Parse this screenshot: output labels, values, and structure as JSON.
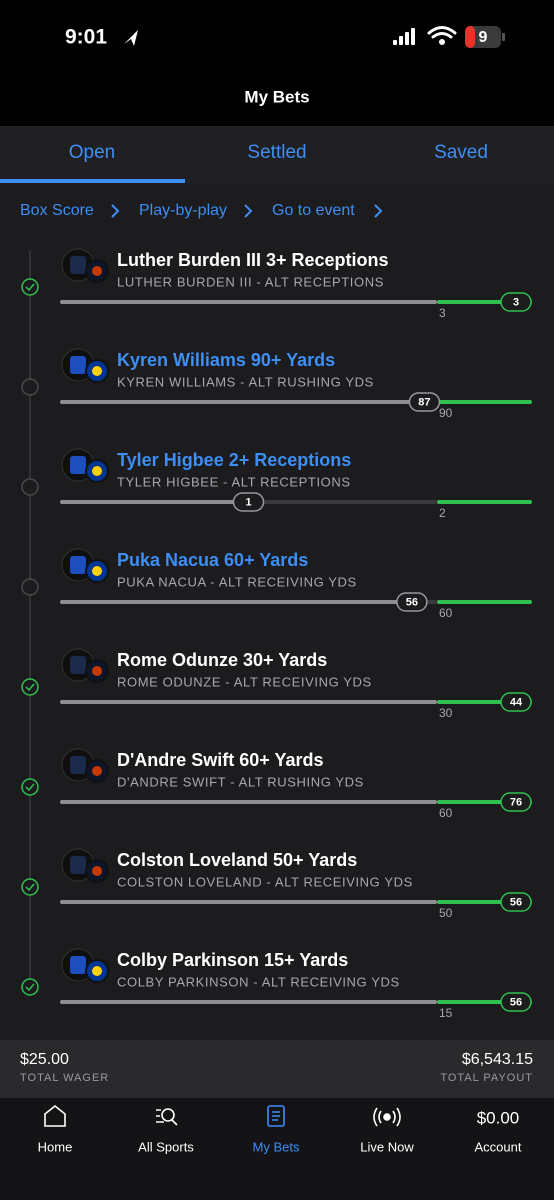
{
  "status_bar": {
    "time": "9:01",
    "battery": "9"
  },
  "header": {
    "title": "My Bets"
  },
  "tabs": [
    "Open",
    "Settled",
    "Saved"
  ],
  "links": [
    "Box Score",
    "Play-by-play",
    "Go to event"
  ],
  "legs": [
    {
      "title": "Luther Burden III 3+ Receptions",
      "subtitle": "LUTHER BURDEN III - ALT RECEPTIONS",
      "current": 3,
      "target": 3
    },
    {
      "title": "Kyren Williams 90+ Yards",
      "subtitle": "KYREN WILLIAMS - ALT RUSHING YDS",
      "current": 87,
      "target": 90
    },
    {
      "title": "Tyler Higbee 2+ Receptions",
      "subtitle": "TYLER HIGBEE - ALT RECEPTIONS",
      "current": 1,
      "target": 2
    },
    {
      "title": "Puka Nacua 60+ Yards",
      "subtitle": "PUKA NACUA - ALT RECEIVING YDS",
      "current": 56,
      "target": 60
    },
    {
      "title": "Rome Odunze 30+ Yards",
      "subtitle": "ROME ODUNZE - ALT RECEIVING YDS",
      "current": 44,
      "target": 30
    },
    {
      "title": "D'Andre Swift 60+ Yards",
      "subtitle": "D'ANDRE SWIFT - ALT RUSHING YDS",
      "current": 76,
      "target": 60
    },
    {
      "title": "Colston Loveland 50+ Yards",
      "subtitle": "COLSTON LOVELAND - ALT RECEIVING YDS",
      "current": 56,
      "target": 50
    },
    {
      "title": "Colby Parkinson 15+ Yards",
      "subtitle": "COLBY PARKINSON - ALT RECEIVING YDS",
      "current": 56,
      "target": 15
    }
  ],
  "footer": {
    "total_wager": {
      "amount": "$25.00",
      "label": "TOTAL WAGER"
    },
    "total_payout": {
      "amount": "$6,543.15",
      "label": "TOTAL PAYOUT"
    }
  },
  "nav": [
    "Home",
    "All Sports",
    "My Bets",
    "Live Now",
    "Account"
  ],
  "account_balance": "$0.00"
}
